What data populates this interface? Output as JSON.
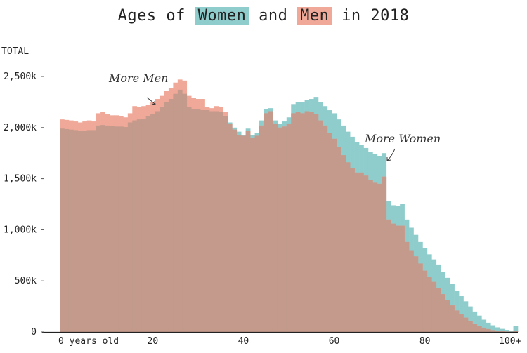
{
  "title": {
    "prefix": "Ages of ",
    "women": "Women",
    "mid": " and ",
    "men": "Men",
    "suffix": " in 2018"
  },
  "colors": {
    "women": "#8fcdcc",
    "men": "#f0a898",
    "overlap": "#c39a8c",
    "axis": "#222222"
  },
  "chart_data": {
    "type": "bar",
    "title": "Ages of Women and Men in 2018",
    "ylabel": "TOTAL",
    "xlabel": "",
    "ylim": [
      0,
      2500000
    ],
    "y_ticks": [
      0,
      500000,
      1000000,
      1500000,
      2000000,
      2500000
    ],
    "y_tick_labels": [
      "0",
      "500k",
      "1,000k",
      "1,500k",
      "2,000k",
      "2,500k"
    ],
    "x_ticks": [
      0,
      20,
      40,
      60,
      80,
      100
    ],
    "x_tick_labels": [
      "0 years old",
      "20",
      "40",
      "60",
      "80",
      "100+"
    ],
    "annotations": [
      {
        "text": "More Men",
        "age": 21
      },
      {
        "text": "More Women",
        "age": 71
      }
    ],
    "ages": [
      0,
      1,
      2,
      3,
      4,
      5,
      6,
      7,
      8,
      9,
      10,
      11,
      12,
      13,
      14,
      15,
      16,
      17,
      18,
      19,
      20,
      21,
      22,
      23,
      24,
      25,
      26,
      27,
      28,
      29,
      30,
      31,
      32,
      33,
      34,
      35,
      36,
      37,
      38,
      39,
      40,
      41,
      42,
      43,
      44,
      45,
      46,
      47,
      48,
      49,
      50,
      51,
      52,
      53,
      54,
      55,
      56,
      57,
      58,
      59,
      60,
      61,
      62,
      63,
      64,
      65,
      66,
      67,
      68,
      69,
      70,
      71,
      72,
      73,
      74,
      75,
      76,
      77,
      78,
      79,
      80,
      81,
      82,
      83,
      84,
      85,
      86,
      87,
      88,
      89,
      90,
      91,
      92,
      93,
      94,
      95,
      96,
      97,
      98,
      99,
      100
    ],
    "series": [
      {
        "name": "Women",
        "values": [
          1990000,
          1985000,
          1980000,
          1975000,
          1965000,
          1970000,
          1975000,
          1975000,
          2020000,
          2025000,
          2020000,
          2015000,
          2010000,
          2010000,
          2005000,
          2050000,
          2070000,
          2080000,
          2085000,
          2110000,
          2130000,
          2160000,
          2200000,
          2250000,
          2280000,
          2330000,
          2370000,
          2330000,
          2200000,
          2180000,
          2180000,
          2170000,
          2170000,
          2160000,
          2160000,
          2150000,
          2110000,
          2050000,
          2000000,
          1960000,
          1930000,
          1990000,
          1930000,
          1950000,
          2070000,
          2180000,
          2190000,
          2070000,
          2040000,
          2060000,
          2100000,
          2230000,
          2250000,
          2250000,
          2270000,
          2280000,
          2300000,
          2250000,
          2210000,
          2170000,
          2140000,
          2080000,
          2020000,
          1960000,
          1910000,
          1860000,
          1830000,
          1800000,
          1760000,
          1740000,
          1720000,
          1750000,
          1280000,
          1240000,
          1230000,
          1250000,
          1100000,
          1020000,
          950000,
          880000,
          820000,
          760000,
          710000,
          660000,
          590000,
          530000,
          470000,
          400000,
          350000,
          300000,
          250000,
          200000,
          160000,
          120000,
          90000,
          65000,
          45000,
          30000,
          20000,
          12000,
          55000
        ]
      },
      {
        "name": "Men",
        "values": [
          2080000,
          2075000,
          2070000,
          2060000,
          2050000,
          2060000,
          2070000,
          2060000,
          2140000,
          2150000,
          2130000,
          2120000,
          2120000,
          2110000,
          2100000,
          2140000,
          2210000,
          2200000,
          2210000,
          2220000,
          2250000,
          2280000,
          2310000,
          2360000,
          2390000,
          2440000,
          2470000,
          2460000,
          2310000,
          2290000,
          2280000,
          2280000,
          2200000,
          2190000,
          2210000,
          2200000,
          2150000,
          2040000,
          1980000,
          1930000,
          1920000,
          1970000,
          1900000,
          1920000,
          2020000,
          2140000,
          2160000,
          2040000,
          2000000,
          2010000,
          2040000,
          2140000,
          2150000,
          2140000,
          2160000,
          2150000,
          2130000,
          2070000,
          2020000,
          1950000,
          1890000,
          1810000,
          1730000,
          1660000,
          1600000,
          1560000,
          1560000,
          1530000,
          1490000,
          1460000,
          1450000,
          1520000,
          1100000,
          1060000,
          1040000,
          1040000,
          880000,
          800000,
          740000,
          670000,
          600000,
          540000,
          490000,
          430000,
          370000,
          310000,
          260000,
          210000,
          175000,
          140000,
          110000,
          80000,
          60000,
          42000,
          28000,
          18000,
          12000,
          7000,
          4000,
          2500,
          12000
        ]
      }
    ]
  }
}
